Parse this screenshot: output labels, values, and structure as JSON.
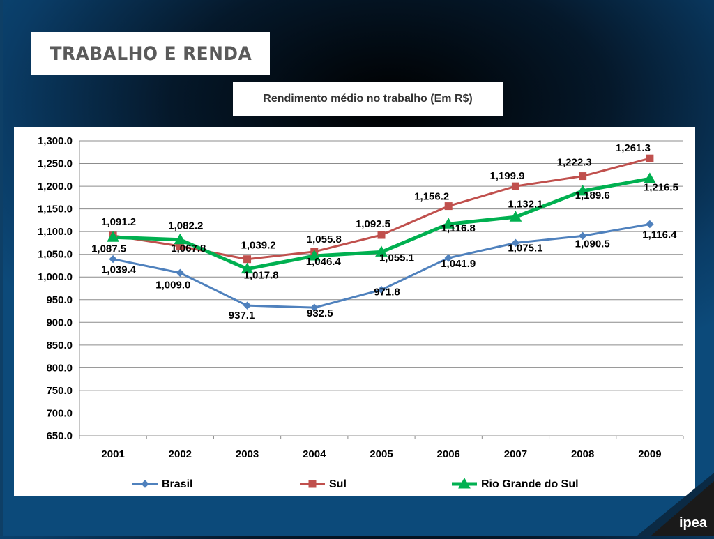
{
  "header": {
    "title": "TRABALHO E RENDA"
  },
  "chart_data": {
    "type": "line",
    "title": "Rendimento médio no trabalho (Em R$)",
    "categories": [
      "2001",
      "2002",
      "2003",
      "2004",
      "2005",
      "2006",
      "2007",
      "2008",
      "2009"
    ],
    "ylim": [
      650,
      1300
    ],
    "yticks": [
      "650.0",
      "700.0",
      "750.0",
      "800.0",
      "850.0",
      "900.0",
      "950.0",
      "1,000.0",
      "1,050.0",
      "1,100.0",
      "1,150.0",
      "1,200.0",
      "1,250.0",
      "1,300.0"
    ],
    "grid": true,
    "legend_position": "bottom",
    "series": [
      {
        "name": "Brasil",
        "color": "#4f81bd",
        "marker": "diamond",
        "values": [
          1039.4,
          1009.0,
          937.1,
          932.5,
          971.8,
          1041.9,
          1075.1,
          1090.5,
          1116.4
        ],
        "labels": [
          "1,039.4",
          "1,009.0",
          "937.1",
          "932.5",
          "971.8",
          "1,041.9",
          "1,075.1",
          "1,090.5",
          "1,116.4"
        ]
      },
      {
        "name": "Sul",
        "color": "#c0504d",
        "marker": "square",
        "values": [
          1091.2,
          1067.8,
          1039.2,
          1055.8,
          1092.5,
          1156.2,
          1199.9,
          1222.3,
          1261.3
        ],
        "labels": [
          "1,091.2",
          "1,067.8",
          "1,039.2",
          "1,055.8",
          "1,092.5",
          "1,156.2",
          "1,199.9",
          "1,222.3",
          "1,261.3"
        ]
      },
      {
        "name": "Rio Grande do Sul",
        "color": "#00b050",
        "marker": "triangle",
        "values": [
          1087.5,
          1082.2,
          1017.8,
          1046.4,
          1055.1,
          1116.8,
          1132.1,
          1189.6,
          1216.5
        ],
        "labels": [
          "1,087.5",
          "1,082.2",
          "1,017.8",
          "1,046.4",
          "1,055.1",
          "1,116.8",
          "1,132.1",
          "1,189.6",
          "1,216.5"
        ]
      }
    ]
  },
  "logo": {
    "text": "ipea"
  }
}
